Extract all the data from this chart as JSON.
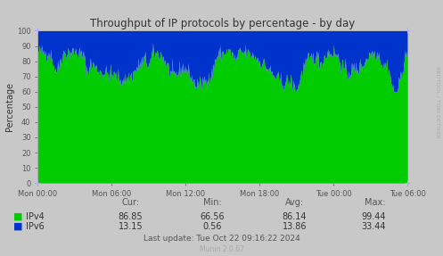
{
  "title": "Throughput of IP protocols by percentage - by day",
  "ylabel": "Percentage",
  "bg_color": "#c8c8c8",
  "plot_bg_color": "#ffffff",
  "ipv4_color": "#00cc00",
  "ipv6_color": "#0033cc",
  "grid_color_h": "#ff6666",
  "grid_color_v": "#ff6666",
  "ylim": [
    0,
    100
  ],
  "yticks": [
    0,
    10,
    20,
    30,
    40,
    50,
    60,
    70,
    80,
    90,
    100
  ],
  "xtick_labels": [
    "Mon 00:00",
    "Mon 06:00",
    "Mon 12:00",
    "Mon 18:00",
    "Tue 00:00",
    "Tue 06:00"
  ],
  "stats": {
    "cur": {
      "ipv4": "86.85",
      "ipv6": "13.15"
    },
    "min": {
      "ipv4": "66.56",
      "ipv6": "0.56"
    },
    "avg": {
      "ipv4": "86.14",
      "ipv6": "13.86"
    },
    "max": {
      "ipv4": "99.44",
      "ipv6": "33.44"
    }
  },
  "footer": "Last update: Tue Oct 22 09:16:22 2024",
  "munin_version": "Munin 2.0.67",
  "rrdtool_label": "RRDTOOL / TOBI OETIKER",
  "n_points": 576,
  "time_hours": 30,
  "seed": 42
}
